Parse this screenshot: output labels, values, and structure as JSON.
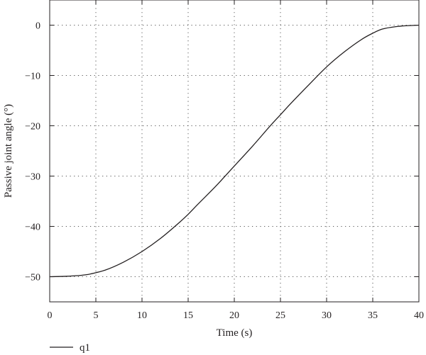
{
  "chart_data": {
    "type": "line",
    "xlabel": "Time (s)",
    "ylabel": "Passive joint angle (°)",
    "xlim": [
      0,
      40
    ],
    "ylim": [
      -55,
      5
    ],
    "xticks": [
      0,
      5,
      10,
      15,
      20,
      25,
      30,
      35,
      40
    ],
    "xtick_labels": [
      "0",
      "5",
      "10",
      "15",
      "20",
      "25",
      "30",
      "35",
      "40"
    ],
    "yticks": [
      0,
      -10,
      -20,
      -30,
      -40,
      -50
    ],
    "ytick_labels": [
      "0",
      "−10",
      "−20",
      "−30",
      "−40",
      "−50"
    ],
    "grid": true,
    "legend_position": "bottom-left",
    "series": [
      {
        "name": "q1",
        "color": "#231f20",
        "x": [
          0,
          2,
          4,
          5,
          6,
          8,
          10,
          12,
          14,
          15,
          16,
          18,
          20,
          22,
          24,
          25,
          26,
          28,
          30,
          32,
          34,
          35,
          36,
          38,
          40
        ],
        "y": [
          -50,
          -49.9,
          -49.6,
          -49.2,
          -48.7,
          -47.1,
          -45.0,
          -42.4,
          -39.3,
          -37.6,
          -35.7,
          -32.0,
          -28.0,
          -24.0,
          -19.8,
          -17.8,
          -15.8,
          -12.0,
          -8.3,
          -5.2,
          -2.6,
          -1.6,
          -0.8,
          -0.2,
          0
        ]
      }
    ]
  }
}
